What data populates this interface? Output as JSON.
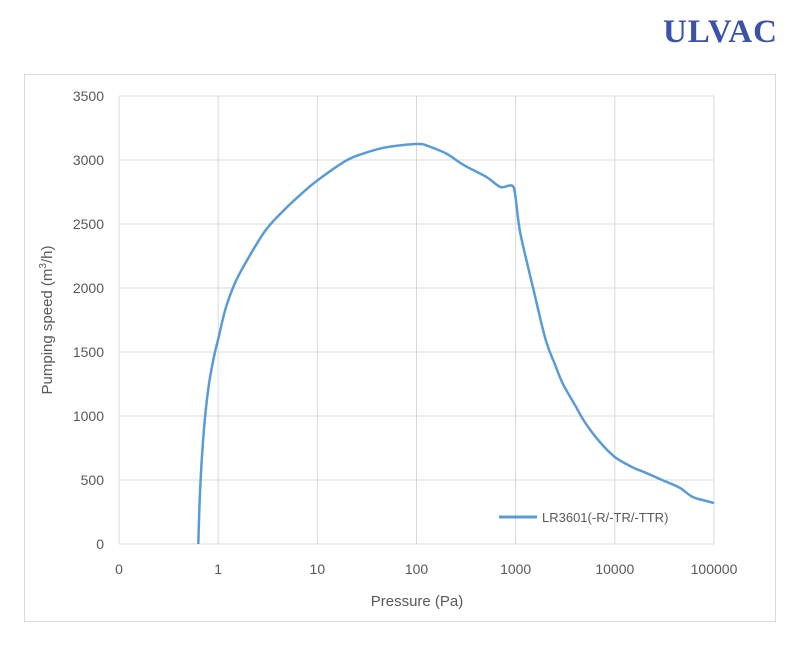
{
  "logo": {
    "text": "ULVAC",
    "color": "#3a52a8"
  },
  "chart_data": {
    "type": "line",
    "title": "",
    "xlabel": "Pressure (Pa)",
    "ylabel_prefix": "Pumping speed (m",
    "ylabel_sup": "3",
    "ylabel_suffix": "/h)",
    "x_scale": "log",
    "x_ticks": [
      {
        "value": 0.1,
        "label": "0"
      },
      {
        "value": 1,
        "label": "1"
      },
      {
        "value": 10,
        "label": "10"
      },
      {
        "value": 100,
        "label": "100"
      },
      {
        "value": 1000,
        "label": "1000"
      },
      {
        "value": 10000,
        "label": "10000"
      },
      {
        "value": 100000,
        "label": "100000"
      }
    ],
    "y_ticks": [
      0,
      500,
      1000,
      1500,
      2000,
      2500,
      3000,
      3500
    ],
    "ylim": [
      0,
      3500
    ],
    "grid": true,
    "legend_position": "bottom-right",
    "series": [
      {
        "name": "LR3601(-R/-TR/-TTR)",
        "color": "#5b9bd5",
        "x": [
          0.63,
          0.66,
          0.72,
          0.8,
          0.9,
          1.0,
          1.2,
          1.5,
          2.0,
          3.0,
          4.5,
          7.0,
          10,
          20,
          35,
          50,
          80,
          110,
          130,
          200,
          300,
          500,
          700,
          850,
          950,
          1000,
          1100,
          1300,
          1500,
          2000,
          2500,
          3000,
          4000,
          5000,
          7000,
          10000,
          15000,
          20000,
          30000,
          45000,
          60000,
          80000,
          100000
        ],
        "y": [
          0,
          450,
          900,
          1230,
          1450,
          1600,
          1850,
          2050,
          2230,
          2450,
          2600,
          2740,
          2840,
          3000,
          3070,
          3100,
          3120,
          3125,
          3110,
          3050,
          2960,
          2870,
          2790,
          2800,
          2790,
          2700,
          2450,
          2200,
          2000,
          1600,
          1400,
          1250,
          1080,
          950,
          800,
          680,
          600,
          560,
          500,
          440,
          370,
          340,
          320
        ]
      }
    ]
  }
}
